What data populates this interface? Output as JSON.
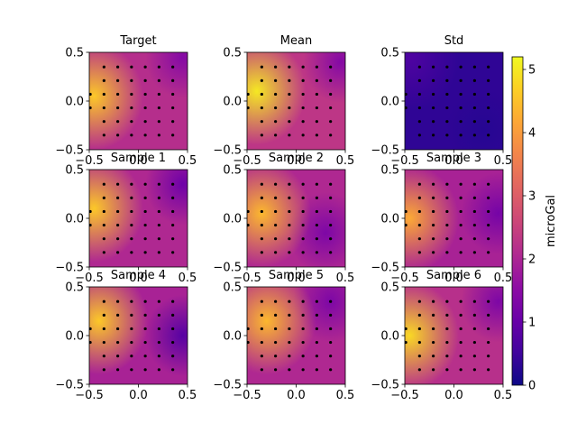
{
  "chart_data": {
    "type": "heatmap",
    "colormap": "plasma",
    "panels": [
      {
        "title": "Target",
        "xlim": [
          -0.5,
          0.5
        ],
        "ylim": [
          -0.5,
          0.5
        ],
        "xticks": [
          "-0.5",
          "0.0",
          "0.5"
        ],
        "yticks": [
          "-0.5",
          "0.0",
          "0.5"
        ],
        "peak": [
          -0.45,
          0.05
        ],
        "peak_value": 4.6,
        "low": [
          0.45,
          0.45
        ],
        "low_value": 1.4
      },
      {
        "title": "Mean",
        "xlim": [
          -0.5,
          0.5
        ],
        "ylim": [
          -0.5,
          0.5
        ],
        "xticks": [
          "-0.5",
          "0.0",
          "0.5"
        ],
        "yticks": [
          "-0.5",
          "0.0",
          "0.5"
        ],
        "peak": [
          -0.4,
          0.1
        ],
        "peak_value": 5.0,
        "low": [
          0.45,
          0.4
        ],
        "low_value": 1.4
      },
      {
        "title": "Std",
        "xlim": [
          -0.5,
          0.5
        ],
        "ylim": [
          -0.5,
          0.5
        ],
        "xticks": [
          "-0.5",
          "0.0",
          "0.5"
        ],
        "yticks": [
          "-0.5",
          "0.0",
          "0.5"
        ],
        "peak": [
          -0.45,
          0.45
        ],
        "peak_value": 0.7,
        "low": [
          0.3,
          -0.3
        ],
        "low_value": 0.25
      },
      {
        "title": "Sample 1",
        "xlim": [
          -0.5,
          0.5
        ],
        "ylim": [
          -0.5,
          0.5
        ],
        "xticks": [
          "-0.5",
          "0.0",
          "0.5"
        ],
        "yticks": [
          "-0.5",
          "0.0",
          "0.5"
        ],
        "peak": [
          -0.45,
          0.1
        ],
        "peak_value": 4.6,
        "low": [
          0.45,
          0.35
        ],
        "low_value": 1.1
      },
      {
        "title": "Sample 2",
        "xlim": [
          -0.5,
          0.5
        ],
        "ylim": [
          -0.5,
          0.5
        ],
        "xticks": [
          "-0.5",
          "0.0",
          "0.5"
        ],
        "yticks": [
          "-0.5",
          "0.0",
          "0.5"
        ],
        "peak": [
          -0.35,
          0.05
        ],
        "peak_value": 4.4,
        "low": [
          0.3,
          -0.15
        ],
        "low_value": 1.3
      },
      {
        "title": "Sample 3",
        "xlim": [
          -0.5,
          0.5
        ],
        "ylim": [
          -0.5,
          0.5
        ],
        "xticks": [
          "-0.5",
          "0.0",
          "0.5"
        ],
        "yticks": [
          "-0.5",
          "0.0",
          "0.5"
        ],
        "peak": [
          -0.45,
          0.0
        ],
        "peak_value": 4.2,
        "low": [
          0.45,
          0.05
        ],
        "low_value": 1.2
      },
      {
        "title": "Sample 4",
        "xlim": [
          -0.5,
          0.5
        ],
        "ylim": [
          -0.5,
          0.5
        ],
        "xticks": [
          "-0.5",
          "0.0",
          "0.5"
        ],
        "yticks": [
          "-0.5",
          "0.0",
          "0.5"
        ],
        "peak": [
          -0.4,
          0.15
        ],
        "peak_value": 4.6,
        "low": [
          0.45,
          0.0
        ],
        "low_value": 0.8
      },
      {
        "title": "Sample 5",
        "xlim": [
          -0.5,
          0.5
        ],
        "ylim": [
          -0.5,
          0.5
        ],
        "xticks": [
          "-0.5",
          "0.0",
          "0.5"
        ],
        "yticks": [
          "-0.5",
          "0.0",
          "0.5"
        ],
        "peak": [
          -0.3,
          0.15
        ],
        "peak_value": 4.4,
        "low": [
          0.35,
          0.35
        ],
        "low_value": 1.3
      },
      {
        "title": "Sample 6",
        "xlim": [
          -0.5,
          0.5
        ],
        "ylim": [
          -0.5,
          0.5
        ],
        "xticks": [
          "-0.5",
          "0.0",
          "0.5"
        ],
        "yticks": [
          "-0.5",
          "0.0",
          "0.5"
        ],
        "peak": [
          -0.45,
          0.0
        ],
        "peak_value": 4.8,
        "low": [
          0.45,
          0.35
        ],
        "low_value": 1.3
      }
    ],
    "colorbar": {
      "label": "microGal",
      "min": 0,
      "max": 5.2,
      "ticks": [
        "0",
        "1",
        "2",
        "3",
        "4",
        "5"
      ]
    },
    "stations": {
      "x": [
        -0.35,
        -0.21,
        -0.07,
        0.07,
        0.21,
        0.35
      ],
      "y": [
        -0.35,
        -0.21,
        -0.07,
        0.07,
        0.21,
        0.35
      ],
      "extra_left_column_x": -0.49
    }
  }
}
